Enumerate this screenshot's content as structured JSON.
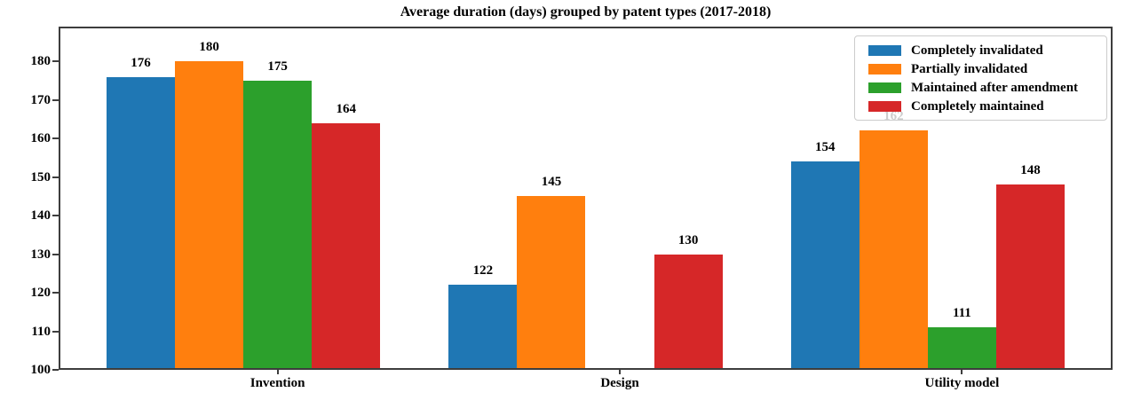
{
  "chart_data": {
    "type": "bar",
    "title": "Average duration (days) grouped by patent types (2017-2018)",
    "categories": [
      "Invention",
      "Design",
      "Utility model"
    ],
    "series": [
      {
        "name": "Completely invalidated",
        "color": "#1f77b4",
        "values": [
          176,
          122,
          154
        ]
      },
      {
        "name": "Partially invalidated",
        "color": "#ff7f0e",
        "values": [
          180,
          145,
          162
        ]
      },
      {
        "name": "Maintained after amendment",
        "color": "#2ca02c",
        "values": [
          175,
          null,
          111
        ]
      },
      {
        "name": "Completely maintained",
        "color": "#d62728",
        "values": [
          164,
          130,
          148
        ]
      }
    ],
    "bar_value_labels": [
      [
        "176",
        "122",
        "154"
      ],
      [
        "180",
        "145",
        "162"
      ],
      [
        "175",
        null,
        "111"
      ],
      [
        "164",
        "130",
        "148"
      ]
    ],
    "xlabel": "",
    "ylabel": "",
    "ylim": [
      100,
      189
    ],
    "yticks": [
      100,
      110,
      120,
      130,
      140,
      150,
      160,
      170,
      180
    ],
    "grid": false,
    "legend": {
      "position": "upper right",
      "entries": [
        "Completely invalidated",
        "Partially invalidated",
        "Maintained after amendment",
        "Completely maintained"
      ]
    },
    "axis_color": "#3d3d3d",
    "text_color": "#000000",
    "note_hidden_label": "162"
  }
}
